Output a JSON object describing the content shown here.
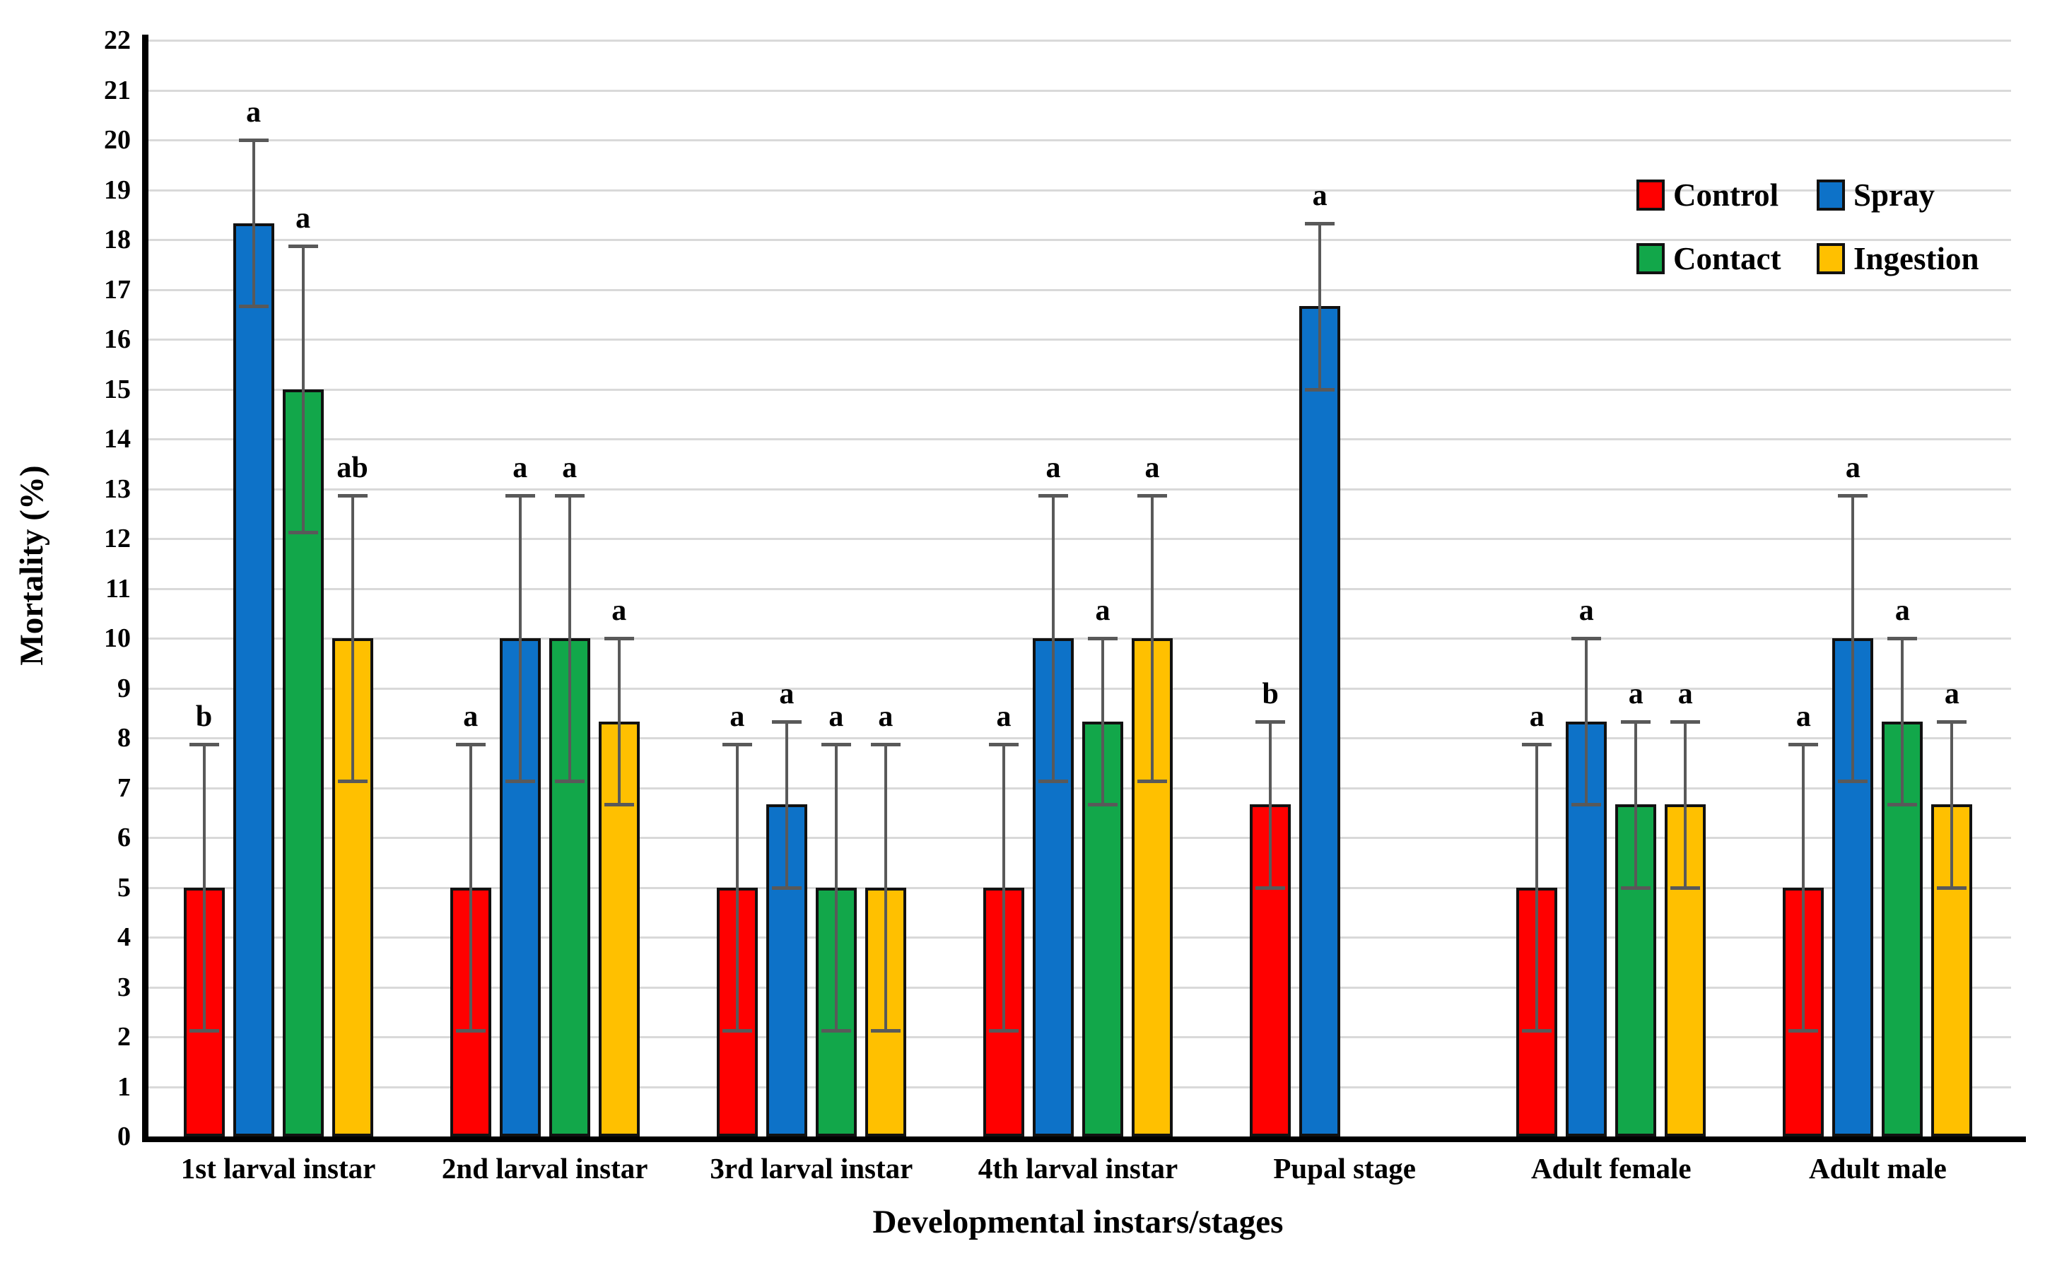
{
  "figure": {
    "background": "#ffffff"
  },
  "chart_data": {
    "type": "bar",
    "title": "",
    "xlabel": "Developmental instars/stages",
    "ylabel": "Mortality (%)",
    "ylim": [
      0,
      22
    ],
    "ytick_step": 1,
    "grid": true,
    "legend_position": "top-right",
    "gridline_color": "#d9d9d9",
    "error_bar_color": "#595959",
    "categories": [
      "1st larval instar",
      "2nd larval instar",
      "3rd larval instar",
      "4th larval instar",
      "Pupal stage",
      "Adult female",
      "Adult male"
    ],
    "series": [
      {
        "name": "Control",
        "color": "#ff0000",
        "values": [
          5,
          5,
          5,
          5,
          6.67,
          5,
          5
        ],
        "err_low": [
          2.13,
          2.13,
          2.13,
          2.13,
          5.0,
          2.13,
          2.13
        ],
        "err_high": [
          7.87,
          7.87,
          7.87,
          7.87,
          8.33,
          7.87,
          7.87
        ],
        "letters": [
          "b",
          "a",
          "a",
          "a",
          "b",
          "a",
          "a"
        ]
      },
      {
        "name": "Spray",
        "color": "#0d72c8",
        "values": [
          18.33,
          10,
          6.67,
          10,
          16.67,
          8.33,
          10
        ],
        "err_low": [
          16.67,
          7.13,
          5.0,
          7.13,
          15.0,
          6.67,
          7.13
        ],
        "err_high": [
          20.0,
          12.87,
          8.33,
          12.87,
          18.33,
          10.0,
          12.87
        ],
        "letters": [
          "a",
          "a",
          "a",
          "a",
          "a",
          "a",
          "a"
        ]
      },
      {
        "name": "Contact",
        "color": "#12a74a",
        "values": [
          15,
          10,
          5,
          8.33,
          null,
          6.67,
          8.33
        ],
        "err_low": [
          12.13,
          7.13,
          2.13,
          6.67,
          null,
          5.0,
          6.67
        ],
        "err_high": [
          17.87,
          12.87,
          7.87,
          10.0,
          null,
          8.33,
          10.0
        ],
        "letters": [
          "a",
          "a",
          "a",
          "a",
          null,
          "a",
          "a"
        ]
      },
      {
        "name": "Ingestion",
        "color": "#ffc000",
        "values": [
          10,
          8.33,
          5,
          10,
          null,
          6.67,
          6.67
        ],
        "err_low": [
          7.13,
          6.67,
          2.13,
          7.13,
          null,
          5.0,
          5.0
        ],
        "err_high": [
          12.87,
          10.0,
          7.87,
          12.87,
          null,
          8.33,
          8.33
        ],
        "letters": [
          "ab",
          "a",
          "a",
          "a",
          null,
          "a",
          "a"
        ]
      }
    ]
  },
  "legend": {
    "items": [
      {
        "label": "Control",
        "color": "#ff0000"
      },
      {
        "label": "Spray",
        "color": "#0d72c8"
      },
      {
        "label": "Contact",
        "color": "#12a74a"
      },
      {
        "label": "Ingestion",
        "color": "#ffc000"
      }
    ]
  }
}
